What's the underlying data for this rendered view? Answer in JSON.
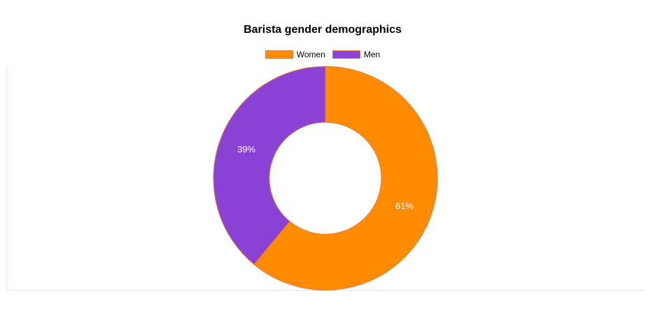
{
  "chart_data": {
    "type": "pie",
    "title": "Barista gender demographics",
    "categories": [
      "Women",
      "Men"
    ],
    "values": [
      61,
      39
    ],
    "value_labels": [
      "61%",
      "39%"
    ],
    "colors": [
      "#ff8c00",
      "#8a41d6"
    ],
    "slice_border_color": "#e07b39",
    "legend_position": "top"
  }
}
